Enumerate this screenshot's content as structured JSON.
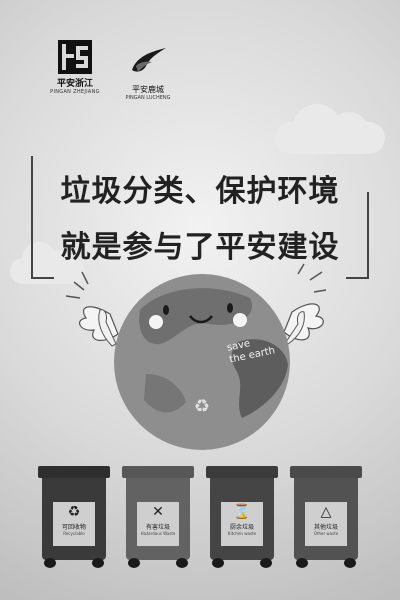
{
  "logos": {
    "pingan_zhejiang": {
      "cn": "平安浙江",
      "en": "PINGAN ZHEJIANG"
    },
    "pingan_luchang": {
      "cn": "平安鹿城",
      "en": "PINGAN LUCHENG"
    }
  },
  "headline": {
    "line1": "垃圾分类、保护环境",
    "line2": "就是参与了平安建设"
  },
  "earth": {
    "text_line1": "save",
    "text_line2": "the earth"
  },
  "bins": [
    {
      "cn": "可回收物",
      "en": "Recyclable",
      "icon": "recycle-icon",
      "glyph": "♻",
      "lid": "#2e2e2e",
      "body": "#3a3a3a"
    },
    {
      "cn": "有害垃圾",
      "en": "Hazardous Waste",
      "icon": "hazard-x-icon",
      "glyph": "✕",
      "lid": "#575757",
      "body": "#626262"
    },
    {
      "cn": "厨余垃圾",
      "en": "Kitchen waste",
      "icon": "hourglass-icon",
      "glyph": "⌛",
      "lid": "#3b3b3b",
      "body": "#454545"
    },
    {
      "cn": "其他垃圾",
      "en": "Other waste",
      "icon": "triangle-icon",
      "glyph": "△",
      "lid": "#4a4a4a",
      "body": "#525252"
    }
  ]
}
